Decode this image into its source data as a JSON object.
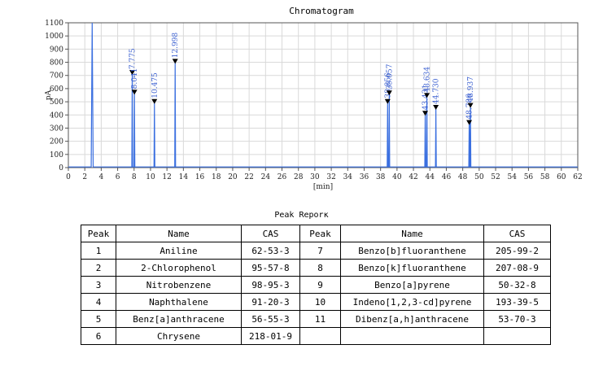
{
  "chart_data": {
    "type": "line",
    "title": "Chromatogram",
    "xlabel": "[min]",
    "ylabel": "pA",
    "xlim": [
      0,
      62
    ],
    "ylim": [
      0,
      1100
    ],
    "x_ticks": [
      0,
      2,
      4,
      6,
      8,
      10,
      12,
      14,
      16,
      18,
      20,
      22,
      24,
      26,
      28,
      30,
      32,
      34,
      36,
      38,
      40,
      42,
      44,
      46,
      48,
      50,
      52,
      54,
      56,
      58,
      60,
      62
    ],
    "y_ticks": [
      0,
      100,
      200,
      300,
      400,
      500,
      600,
      700,
      800,
      900,
      1000,
      1100
    ],
    "grid": true,
    "baseline": 5,
    "solvent_peak": {
      "rt": 2.9,
      "height": 1100
    },
    "peaks": [
      {
        "rt": 7.775,
        "label": "7.775",
        "height": 710
      },
      {
        "rt": 8.041,
        "label": "8.041",
        "height": 560
      },
      {
        "rt": 10.475,
        "label": "10.475",
        "height": 490
      },
      {
        "rt": 12.998,
        "label": "12.998",
        "height": 795
      },
      {
        "rt": 38.856,
        "label": "38.856",
        "height": 490
      },
      {
        "rt": 39.057,
        "label": "39.057",
        "height": 555
      },
      {
        "rt": 43.431,
        "label": "43.431",
        "height": 400
      },
      {
        "rt": 43.634,
        "label": "43.634",
        "height": 535
      },
      {
        "rt": 44.73,
        "label": "44.730",
        "height": 445
      },
      {
        "rt": 48.786,
        "label": "48.786",
        "height": 330
      },
      {
        "rt": 48.937,
        "label": "48.937",
        "height": 460
      }
    ]
  },
  "table": {
    "title": "Peak Reporк",
    "headers": [
      "Peak",
      "Name",
      "CAS",
      "Peak",
      "Name",
      "CAS"
    ],
    "rows": [
      [
        "1",
        "Aniline",
        "62-53-3",
        "7",
        "Benzo[b]fluoranthene",
        "205-99-2"
      ],
      [
        "2",
        "2-Chlorophenol",
        "95-57-8",
        "8",
        "Benzo[k]fluoranthene",
        "207-08-9"
      ],
      [
        "3",
        "Nitrobenzene",
        "98-95-3",
        "9",
        "Benzo[a]pyrene",
        "50-32-8"
      ],
      [
        "4",
        "Naphthalene",
        "91-20-3",
        "10",
        "Indeno[1,2,3-cd]pyrene",
        "193-39-5"
      ],
      [
        "5",
        "Benz[a]anthracene",
        "56-55-3",
        "11",
        "Dibenz[a,h]anthracene",
        "53-70-3"
      ],
      [
        "6",
        "Chrysene",
        "218-01-9",
        "",
        "",
        ""
      ]
    ]
  }
}
